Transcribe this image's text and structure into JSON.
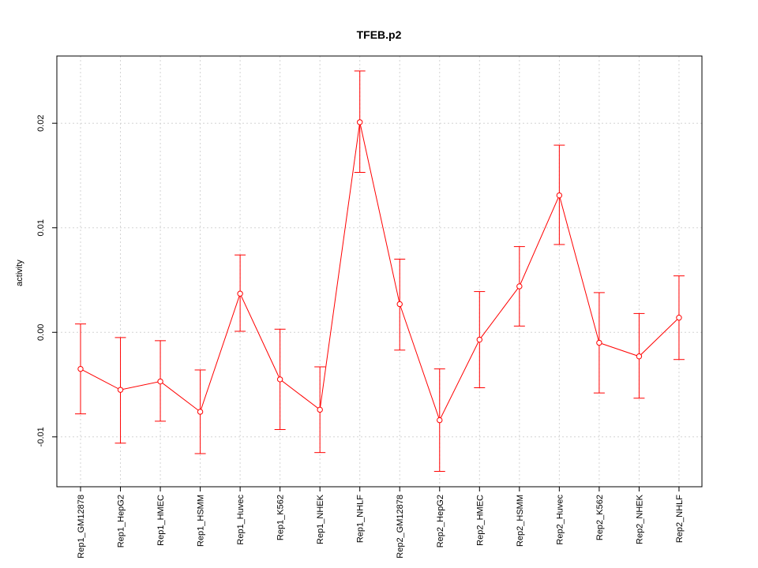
{
  "chart_data": {
    "type": "line",
    "title": "TFEB.p2",
    "xlabel": "",
    "ylabel": "activity",
    "categories": [
      "Rep1_GM12878",
      "Rep1_HepG2",
      "Rep1_HMEC",
      "Rep1_HSMM",
      "Rep1_Huvec",
      "Rep1_K562",
      "Rep1_NHEK",
      "Rep1_NHLF",
      "Rep2_GM12878",
      "Rep2_HepG2",
      "Rep2_HMEC",
      "Rep2_HSMM",
      "Rep2_Huvec",
      "Rep2_K562",
      "Rep2_NHEK",
      "Rep2_NHLF"
    ],
    "series": [
      {
        "name": "activity",
        "values": [
          -0.0035,
          -0.0055,
          -0.0047,
          -0.0076,
          0.0037,
          -0.0045,
          -0.0074,
          0.0201,
          0.0027,
          -0.0084,
          -0.0007,
          0.0044,
          0.0131,
          -0.001,
          -0.0023,
          0.0014
        ],
        "upper": [
          0.0008,
          -0.0005,
          -0.0008,
          -0.0036,
          0.0074,
          0.0003,
          -0.0033,
          0.025,
          0.007,
          -0.0035,
          0.0039,
          0.0082,
          0.0179,
          0.0038,
          0.0018,
          0.0054
        ],
        "lower": [
          -0.0078,
          -0.0106,
          -0.0085,
          -0.0116,
          0.0001,
          -0.0093,
          -0.0115,
          0.0153,
          -0.0017,
          -0.0133,
          -0.0053,
          0.0006,
          0.0084,
          -0.0058,
          -0.0063,
          -0.0026
        ]
      }
    ],
    "yticks": [
      -0.01,
      0.0,
      0.01,
      0.02
    ],
    "ytick_labels": [
      "-0.01",
      "0.00",
      "0.01",
      "0.02"
    ],
    "ylim": [
      -0.01477,
      0.02643
    ],
    "grid": true,
    "reference_line": 0,
    "colors": {
      "series": "#ff0000",
      "grid": "#d3d3d3",
      "axis": "#000000"
    }
  }
}
